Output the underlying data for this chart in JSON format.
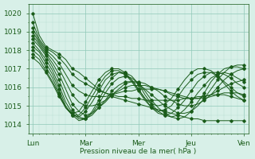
{
  "bg_color": "#d8f0e8",
  "grid_minor_color": "#b8ddd0",
  "grid_major_color": "#90c8b8",
  "line_color": "#1a5c1a",
  "marker_color": "#1a5c1a",
  "xlabel": "Pression niveau de la mer( hPa )",
  "tick_color": "#1a5c1a",
  "ylim": [
    1013.8,
    1020.3
  ],
  "yticks": [
    1014,
    1015,
    1016,
    1017,
    1018,
    1019,
    1020
  ],
  "xlim": [
    -2,
    98
  ],
  "xtick_positions": [
    0,
    24,
    48,
    72,
    96
  ],
  "xtick_labels": [
    "Lun",
    "Mar",
    "Mer",
    "Jeu",
    "Ven"
  ],
  "num_series": 11,
  "series_data": [
    [
      1020.0,
      1018.8,
      1018.2,
      1018.0,
      1017.8,
      1017.5,
      1017.0,
      1016.8,
      1016.5,
      1016.2,
      1015.9,
      1015.7,
      1015.5,
      1015.4,
      1015.3,
      1015.2,
      1015.1,
      1015.0,
      1014.9,
      1014.8,
      1014.7,
      1014.6,
      1014.5,
      1014.4,
      1014.3,
      1014.3,
      1014.2,
      1014.2,
      1014.2,
      1014.2,
      1014.2,
      1014.2,
      1014.2
    ],
    [
      1019.5,
      1018.6,
      1018.1,
      1017.9,
      1017.6,
      1017.2,
      1016.7,
      1016.4,
      1016.2,
      1016.0,
      1015.8,
      1015.7,
      1015.6,
      1015.5,
      1015.5,
      1015.4,
      1015.4,
      1015.3,
      1015.3,
      1015.3,
      1015.3,
      1015.3,
      1015.3,
      1015.4,
      1015.4,
      1015.5,
      1015.5,
      1015.6,
      1015.6,
      1015.6,
      1015.5,
      1015.4,
      1015.3
    ],
    [
      1019.2,
      1018.5,
      1018.0,
      1017.7,
      1017.3,
      1016.7,
      1016.1,
      1015.8,
      1015.6,
      1015.5,
      1015.5,
      1015.5,
      1015.6,
      1015.7,
      1015.8,
      1015.8,
      1015.9,
      1015.9,
      1015.9,
      1015.9,
      1015.8,
      1015.7,
      1015.6,
      1015.5,
      1015.4,
      1015.4,
      1015.4,
      1015.5,
      1015.6,
      1015.7,
      1015.7,
      1015.7,
      1015.6
    ],
    [
      1019.0,
      1018.4,
      1017.9,
      1017.5,
      1017.0,
      1016.3,
      1015.6,
      1015.2,
      1015.0,
      1015.0,
      1015.1,
      1015.3,
      1015.6,
      1015.8,
      1016.0,
      1016.1,
      1016.1,
      1016.1,
      1016.0,
      1015.9,
      1015.8,
      1015.6,
      1015.5,
      1015.4,
      1015.4,
      1015.4,
      1015.5,
      1015.6,
      1015.8,
      1016.0,
      1016.2,
      1016.3,
      1016.4
    ],
    [
      1018.8,
      1018.3,
      1017.8,
      1017.3,
      1016.7,
      1015.9,
      1015.1,
      1014.7,
      1014.5,
      1014.6,
      1014.9,
      1015.2,
      1015.6,
      1015.9,
      1016.2,
      1016.3,
      1016.3,
      1016.2,
      1016.0,
      1015.8,
      1015.5,
      1015.3,
      1015.1,
      1015.0,
      1015.0,
      1015.1,
      1015.3,
      1015.6,
      1016.0,
      1016.4,
      1016.7,
      1016.9,
      1017.0
    ],
    [
      1018.6,
      1018.2,
      1017.7,
      1017.1,
      1016.4,
      1015.5,
      1014.8,
      1014.4,
      1014.3,
      1014.5,
      1014.9,
      1015.3,
      1015.8,
      1016.1,
      1016.3,
      1016.3,
      1016.2,
      1015.9,
      1015.6,
      1015.3,
      1015.0,
      1014.8,
      1014.6,
      1014.6,
      1014.7,
      1015.0,
      1015.4,
      1015.9,
      1016.4,
      1016.8,
      1017.1,
      1017.2,
      1017.2
    ],
    [
      1018.4,
      1018.0,
      1017.5,
      1016.9,
      1016.1,
      1015.2,
      1014.6,
      1014.3,
      1014.3,
      1014.6,
      1015.1,
      1015.7,
      1016.2,
      1016.5,
      1016.6,
      1016.5,
      1016.2,
      1015.8,
      1015.3,
      1014.9,
      1014.6,
      1014.4,
      1014.3,
      1014.4,
      1014.7,
      1015.2,
      1015.7,
      1016.3,
      1016.7,
      1017.0,
      1017.1,
      1017.1,
      1017.0
    ],
    [
      1018.2,
      1017.9,
      1017.3,
      1016.7,
      1015.9,
      1015.0,
      1014.5,
      1014.2,
      1014.3,
      1014.7,
      1015.3,
      1016.0,
      1016.5,
      1016.8,
      1016.8,
      1016.6,
      1016.2,
      1015.6,
      1015.1,
      1014.7,
      1014.5,
      1014.4,
      1014.5,
      1014.8,
      1015.2,
      1015.7,
      1016.1,
      1016.5,
      1016.7,
      1016.8,
      1016.7,
      1016.5,
      1016.3
    ],
    [
      1018.0,
      1017.7,
      1017.1,
      1016.5,
      1015.7,
      1014.9,
      1014.5,
      1014.4,
      1014.7,
      1015.2,
      1015.8,
      1016.4,
      1016.7,
      1016.8,
      1016.7,
      1016.4,
      1015.9,
      1015.4,
      1014.9,
      1014.6,
      1014.5,
      1014.6,
      1014.9,
      1015.3,
      1015.8,
      1016.3,
      1016.6,
      1016.8,
      1016.8,
      1016.7,
      1016.5,
      1016.2,
      1016.0
    ],
    [
      1017.8,
      1017.5,
      1016.9,
      1016.3,
      1015.6,
      1014.9,
      1014.5,
      1014.5,
      1014.9,
      1015.5,
      1016.1,
      1016.6,
      1016.9,
      1016.9,
      1016.7,
      1016.3,
      1015.8,
      1015.3,
      1014.9,
      1014.7,
      1014.8,
      1015.0,
      1015.5,
      1016.0,
      1016.4,
      1016.7,
      1016.8,
      1016.8,
      1016.6,
      1016.3,
      1016.0,
      1015.7,
      1015.5
    ],
    [
      1017.6,
      1017.3,
      1016.8,
      1016.2,
      1015.5,
      1014.9,
      1014.6,
      1014.7,
      1015.2,
      1015.8,
      1016.4,
      1016.8,
      1017.0,
      1017.0,
      1016.8,
      1016.4,
      1015.9,
      1015.4,
      1015.1,
      1015.0,
      1015.1,
      1015.4,
      1015.9,
      1016.4,
      1016.8,
      1017.0,
      1017.0,
      1016.9,
      1016.6,
      1016.2,
      1015.8,
      1015.5,
      1015.3
    ]
  ]
}
